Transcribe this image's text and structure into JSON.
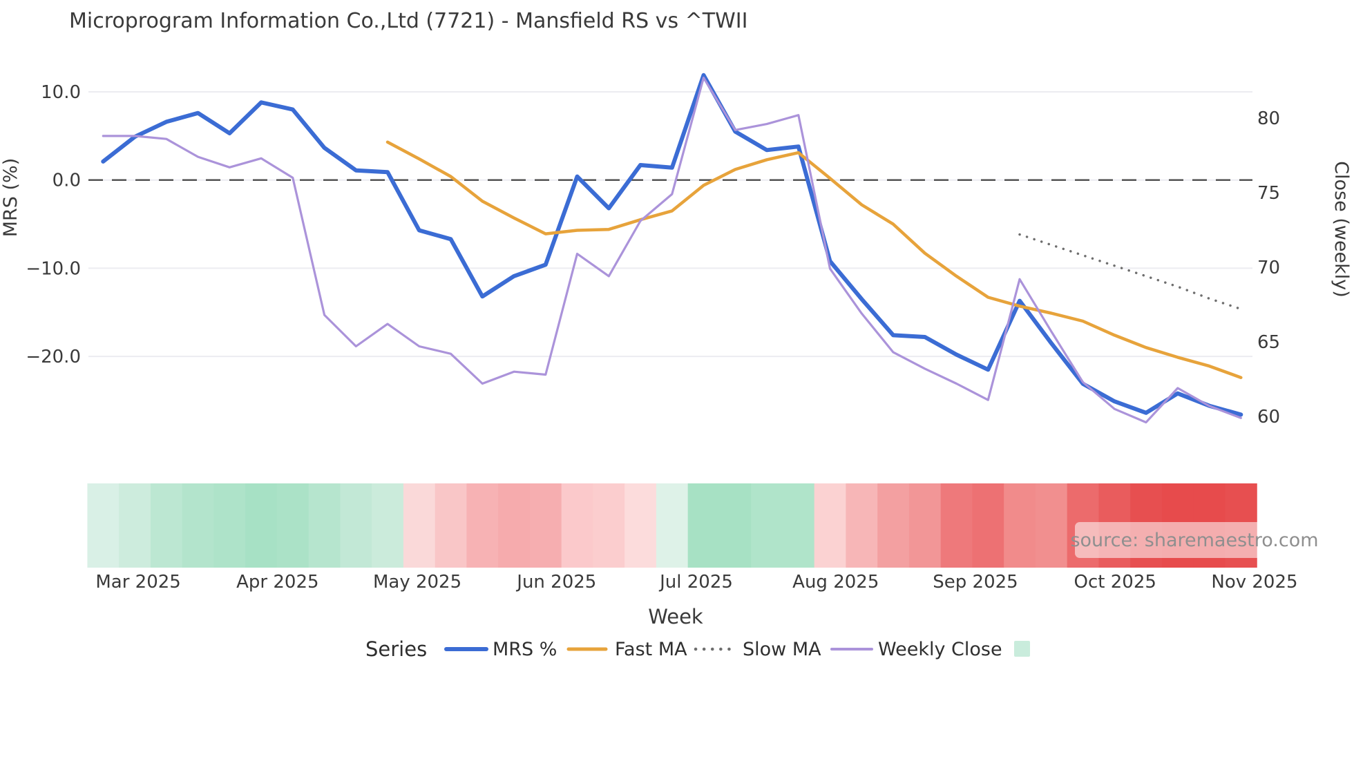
{
  "title": "Microprogram Information Co.,Ltd (7721) - Mansfield RS vs ^TWII",
  "source_note": "source: sharemaestro.com",
  "xlabel": "Week",
  "left_axis": {
    "label": "MRS (%)",
    "ticks": [
      {
        "value": 10,
        "label": "10.0"
      },
      {
        "value": 0,
        "label": "0.0"
      },
      {
        "value": -10,
        "label": "−10.0"
      },
      {
        "value": -20,
        "label": "−20.0"
      }
    ]
  },
  "right_axis": {
    "label": "Close (weekly)",
    "ticks": [
      {
        "value": 80,
        "label": "80"
      },
      {
        "value": 75,
        "label": "75"
      },
      {
        "value": 70,
        "label": "70"
      },
      {
        "value": 65,
        "label": "65"
      },
      {
        "value": 60,
        "label": "60"
      }
    ]
  },
  "months": [
    {
      "label": "Mar 2025",
      "week": 1.11
    },
    {
      "label": "Apr 2025",
      "week": 5.52
    },
    {
      "label": "May 2025",
      "week": 9.94
    },
    {
      "label": "Jun 2025",
      "week": 14.35
    },
    {
      "label": "Jul 2025",
      "week": 18.77
    },
    {
      "label": "Aug 2025",
      "week": 23.18
    },
    {
      "label": "Sep 2025",
      "week": 27.6
    },
    {
      "label": "Oct 2025",
      "week": 32.02
    },
    {
      "label": "Nov 2025",
      "week": 36.43
    }
  ],
  "legend": {
    "series_label": "Series",
    "items": [
      {
        "label": "MRS %",
        "color": "#3b6cd4",
        "style": "solid"
      },
      {
        "label": "Fast MA",
        "color": "#e7a33b",
        "style": "solid"
      },
      {
        "label": "Slow MA",
        "color": "#6e6e6e",
        "style": "dotted"
      },
      {
        "label": "Weekly Close",
        "color": "#ab93da",
        "style": "solid"
      }
    ],
    "heatmap_swatch_color": "#c9ecdc"
  },
  "chart_data": {
    "type": "line",
    "x_unit": "week_index",
    "weeks": 37,
    "ylim_left": [
      -28.92,
      13.76
    ],
    "ylim_right": [
      58.75,
      83.98
    ],
    "zero_line_value": 0,
    "grid": true,
    "series": [
      {
        "name": "MRS %",
        "axis": "left",
        "color": "#3b6cd4",
        "width": 6,
        "dotted": false,
        "values": [
          2.1,
          4.9,
          6.6,
          7.6,
          5.3,
          8.8,
          8.0,
          3.65,
          1.1,
          0.9,
          -5.7,
          -6.7,
          -13.2,
          -10.9,
          -9.6,
          0.4,
          -3.2,
          1.7,
          1.4,
          11.9,
          5.5,
          3.4,
          3.8,
          -9.2,
          -13.5,
          -17.6,
          -17.8,
          -19.8,
          -21.5,
          -13.7,
          -18.5,
          -23.1,
          -25.1,
          -26.4,
          -24.2,
          -25.6,
          -26.6
        ]
      },
      {
        "name": "Fast MA",
        "axis": "left",
        "color": "#e7a33b",
        "width": 4.5,
        "dotted": false,
        "values": [
          null,
          null,
          null,
          null,
          null,
          null,
          null,
          null,
          null,
          4.3,
          2.4,
          0.4,
          -2.4,
          -4.3,
          -6.1,
          -5.7,
          -5.6,
          -4.5,
          -3.5,
          -0.6,
          1.2,
          2.3,
          3.1,
          0.2,
          -2.8,
          -5.0,
          -8.3,
          -10.9,
          -13.3,
          -14.3,
          -15.1,
          -16.0,
          -17.6,
          -19.0,
          -20.1,
          -21.1,
          -22.4
        ]
      },
      {
        "name": "Slow MA",
        "axis": "right",
        "color": "#6e6e6e",
        "width": 3.5,
        "dotted": true,
        "values": [
          null,
          null,
          null,
          null,
          null,
          null,
          null,
          null,
          null,
          null,
          null,
          null,
          null,
          null,
          null,
          null,
          null,
          null,
          null,
          null,
          null,
          null,
          null,
          null,
          null,
          null,
          null,
          null,
          null,
          72.2,
          71.5,
          70.8,
          70.1,
          69.4,
          68.7,
          67.9,
          67.2
        ]
      },
      {
        "name": "Weekly Close",
        "axis": "right",
        "color": "#ab93da",
        "width": 3.2,
        "dotted": false,
        "values": [
          78.8,
          78.8,
          78.6,
          77.4,
          76.7,
          77.3,
          76.0,
          66.8,
          64.7,
          66.2,
          64.7,
          64.2,
          62.2,
          63.0,
          62.8,
          70.9,
          69.4,
          73.1,
          74.9,
          82.7,
          79.2,
          79.6,
          80.2,
          69.9,
          66.9,
          64.3,
          63.2,
          62.2,
          61.1,
          69.2,
          65.7,
          62.3,
          60.5,
          59.6,
          61.9,
          60.7,
          59.9
        ]
      }
    ],
    "heatmap_colors": [
      "#d9f0e6",
      "#cdecdd",
      "#bce7d2",
      "#b3e4cc",
      "#aee3c9",
      "#a7e1c5",
      "#abe2c7",
      "#b6e5ce",
      "#c2e8d6",
      "#cbebdb",
      "#fad9d9",
      "#f9c6c7",
      "#f7b2b4",
      "#f6abad",
      "#f6aeb0",
      "#fbc9cb",
      "#fbcdce",
      "#fcdcdc",
      "#def2e8",
      "#a7e1c4",
      "#a7e1c4",
      "#b0e4ca",
      "#b0e4ca",
      "#fbd2d2",
      "#f7b6b7",
      "#f3a0a1",
      "#f29697",
      "#ee797b",
      "#ed7173",
      "#f18b8b",
      "#f18f8f",
      "#ec6b6c",
      "#e95c5d",
      "#e74f50",
      "#e74b4c",
      "#e74b4c",
      "#e74f50"
    ]
  },
  "colors": {
    "grid": "#ececf1",
    "zero_line": "#4b4b4b",
    "text": "#3a3a3a",
    "watermark_bg": "rgba(255,255,255,0.55)"
  }
}
